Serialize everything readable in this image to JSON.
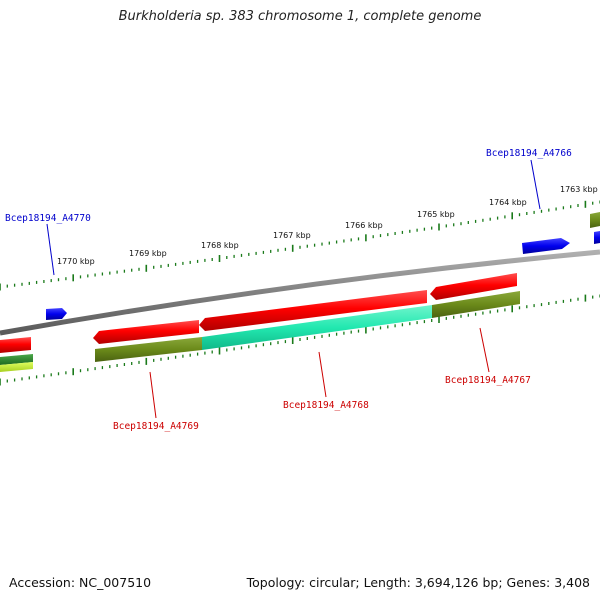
{
  "title": "Burkholderia sp. 383 chromosome 1, complete genome",
  "footer": {
    "accession": "Accession: NC_007510",
    "topology": "Topology: circular; Length: 3,694,126 bp; Genes: 3,408"
  },
  "colors": {
    "backbone": "#888888",
    "tick": "#1a7a1a",
    "cds": "#ff0000",
    "small_gene": "#0000ee",
    "strand_olive": "#6b8a1a",
    "strand_teal": "#22e8b0",
    "strand_green": "#2a8a2a",
    "strand_lime": "#c8f030",
    "label_forward": "#0000cc",
    "label_reverse": "#cc0000"
  },
  "scale_labels": [
    {
      "text": "1763 kbp"
    },
    {
      "text": "1764 kbp"
    },
    {
      "text": "1765 kbp"
    },
    {
      "text": "1766 kbp"
    },
    {
      "text": "1767 kbp"
    },
    {
      "text": "1768 kbp"
    },
    {
      "text": "1769 kbp"
    },
    {
      "text": "1770 kbp"
    }
  ],
  "gene_labels": [
    {
      "text": "Bcep18194_A4766",
      "strand": "forward"
    },
    {
      "text": "Bcep18194_A4770",
      "strand": "forward"
    },
    {
      "text": "Bcep18194_A4767",
      "strand": "reverse"
    },
    {
      "text": "Bcep18194_A4768",
      "strand": "reverse"
    },
    {
      "text": "Bcep18194_A4769",
      "strand": "reverse"
    }
  ]
}
